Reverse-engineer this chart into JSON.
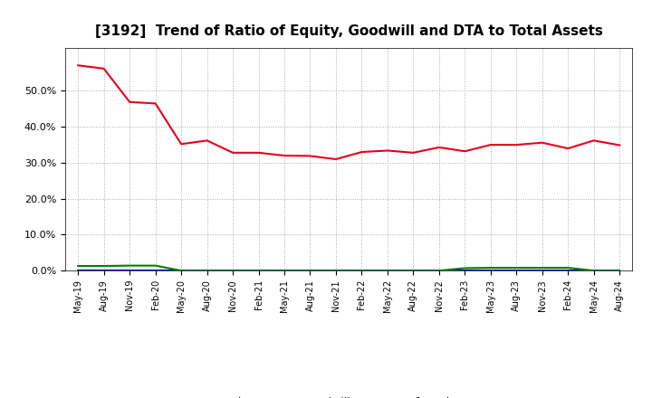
{
  "title": "[3192]  Trend of Ratio of Equity, Goodwill and DTA to Total Assets",
  "x_labels": [
    "May-19",
    "Aug-19",
    "Nov-19",
    "Feb-20",
    "May-20",
    "Aug-20",
    "Nov-20",
    "Feb-21",
    "May-21",
    "Aug-21",
    "Nov-21",
    "Feb-22",
    "May-22",
    "Aug-22",
    "Nov-22",
    "Feb-23",
    "May-23",
    "Aug-23",
    "Nov-23",
    "Feb-24",
    "May-24",
    "Aug-24"
  ],
  "equity": [
    0.571,
    0.562,
    0.469,
    0.465,
    0.352,
    0.362,
    0.328,
    0.328,
    0.32,
    0.319,
    0.31,
    0.33,
    0.334,
    0.328,
    0.343,
    0.332,
    0.35,
    0.35,
    0.356,
    0.34,
    0.362,
    0.349
  ],
  "goodwill": [
    0.0,
    0.0,
    0.0,
    0.0,
    0.0,
    0.0,
    0.0,
    0.0,
    0.0,
    0.0,
    0.0,
    0.0,
    0.0,
    0.0,
    0.0,
    0.0,
    0.0,
    0.0,
    0.0,
    0.0,
    0.0,
    0.0
  ],
  "dta": [
    0.013,
    0.013,
    0.014,
    0.014,
    0.0,
    0.0,
    0.0,
    0.0,
    0.0,
    0.0,
    0.0,
    0.0,
    0.0,
    0.0,
    0.0,
    0.007,
    0.008,
    0.008,
    0.008,
    0.008,
    0.0,
    0.0
  ],
  "equity_color": "#e8001c",
  "goodwill_color": "#0000cc",
  "dta_color": "#008000",
  "background_color": "#ffffff",
  "plot_bg_color": "#ffffff",
  "grid_color": "#aaaaaa",
  "ylim": [
    0.0,
    0.62
  ],
  "yticks": [
    0.0,
    0.1,
    0.2,
    0.3,
    0.4,
    0.5
  ],
  "title_fontsize": 11
}
